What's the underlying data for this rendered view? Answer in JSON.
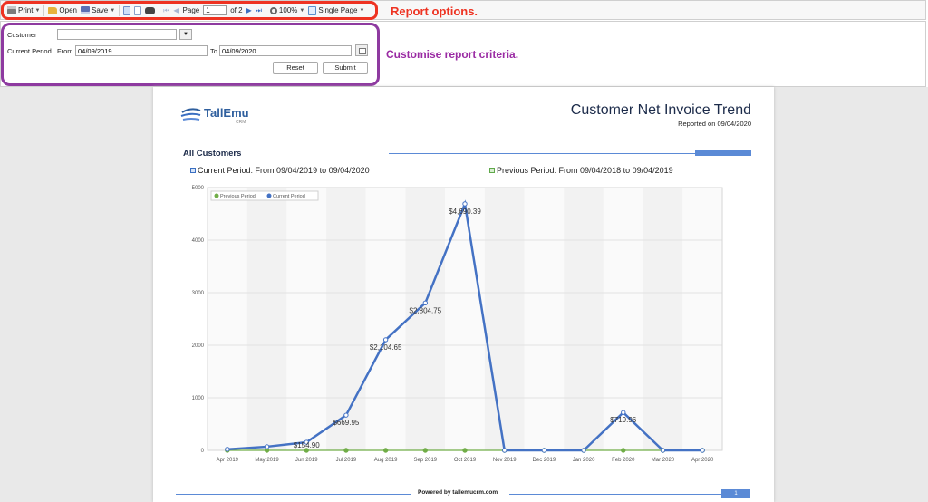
{
  "toolbar": {
    "print_label": "Print",
    "open_label": "Open",
    "save_label": "Save",
    "page_label": "Page",
    "page_value": "1",
    "page_of": "of 2",
    "zoom_label": "100%",
    "view_label": "Single Page"
  },
  "annotations": {
    "report_options": "Report options.",
    "customise": "Customise report criteria."
  },
  "criteria": {
    "customer_label": "Customer",
    "customer_value": "",
    "period_label": "Current Period",
    "from_label": "From",
    "from_value": "04/09/2019",
    "to_label": "To",
    "to_value": "04/09/2020",
    "reset_label": "Reset",
    "submit_label": "Submit"
  },
  "report": {
    "logo_text": "TallEmu",
    "logo_sub": "CRM",
    "title": "Customer Net Invoice Trend",
    "reported_on": "Reported on 09/04/2020",
    "section": "All Customers",
    "legend_current": "Current Period: From 09/04/2019 to 09/04/2020",
    "legend_previous": "Previous Period: From 09/04/2018 to 09/04/2019",
    "footer": "Powered by tallemucrm.com",
    "page_number": "1"
  },
  "colors": {
    "current": "#4472c4",
    "previous": "#70ad47",
    "toolbar_highlight": "#ee3322",
    "criteria_highlight": "#8e3aa0",
    "accent": "#5b8ad6"
  },
  "chart_data": {
    "type": "line",
    "categories": [
      "Apr 2019",
      "May 2019",
      "Jun 2019",
      "Jul 2019",
      "Aug 2019",
      "Sep 2019",
      "Oct 2019",
      "Nov 2019",
      "Dec 2019",
      "Jan 2020",
      "Feb 2020",
      "Mar 2020",
      "Apr 2020"
    ],
    "series": [
      {
        "name": "Previous Period",
        "color": "#70ad47",
        "values": [
          0,
          0,
          0,
          0,
          0,
          0,
          0,
          0,
          0,
          0,
          0,
          0,
          0
        ]
      },
      {
        "name": "Current Period",
        "color": "#4472c4",
        "values": [
          20,
          70,
          154.9,
          669.95,
          2104.65,
          2804.75,
          4690.39,
          0,
          0,
          0,
          719.96,
          0,
          0
        ],
        "labels": [
          "",
          "",
          "$154.90",
          "$669.95",
          "$2,104.65",
          "$2,804.75",
          "$4,690.39",
          "",
          "",
          "",
          "$719.96",
          "",
          ""
        ]
      }
    ],
    "ylim": [
      0,
      5000
    ],
    "yticks": [
      0,
      1000,
      2000,
      3000,
      4000,
      5000
    ],
    "grid": true,
    "legend": "top-left"
  }
}
